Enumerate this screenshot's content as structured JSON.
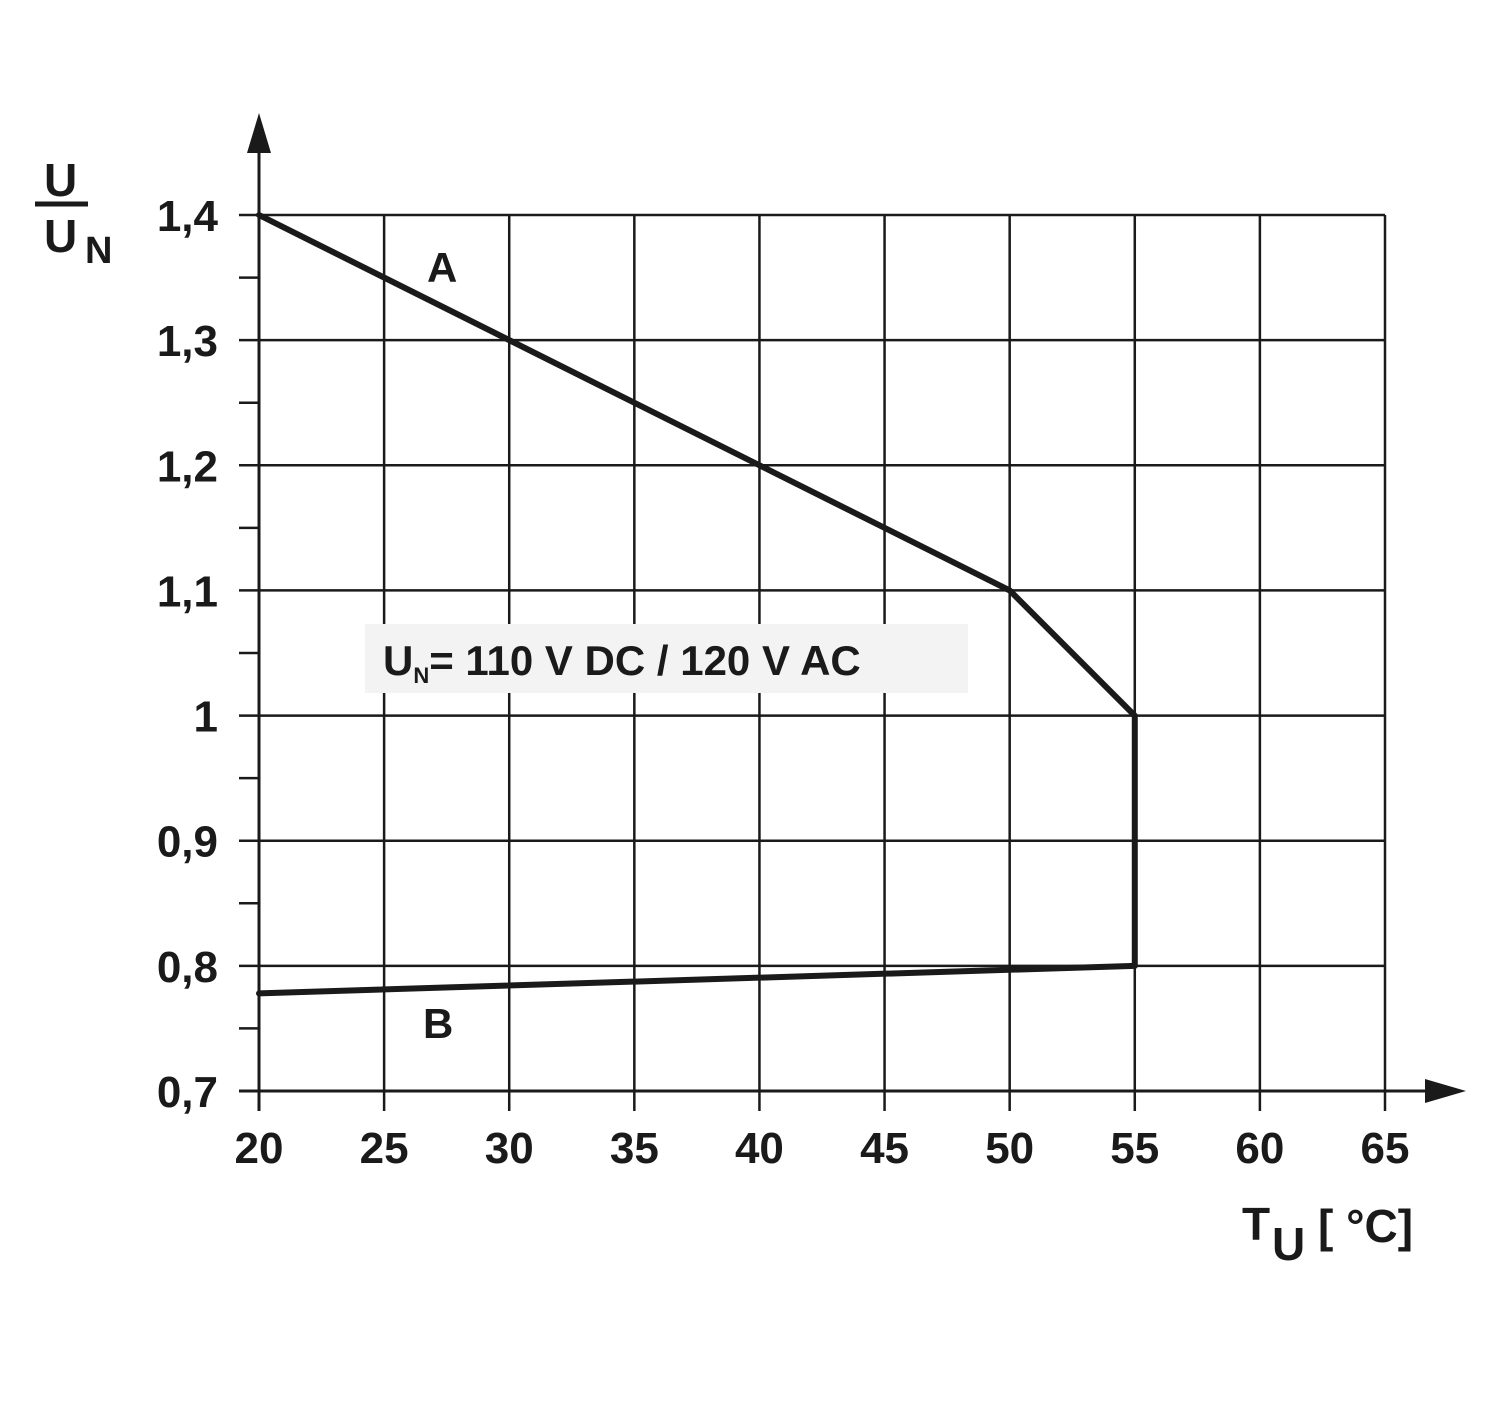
{
  "chart_data": {
    "type": "line",
    "title": "",
    "xlabel": "T",
    "xlabel_sub": "U",
    "xlabel_unit": "[ °C]",
    "ylabel_num": "U",
    "ylabel_den": "U",
    "ylabel_den_sub": "N",
    "xlim": [
      20,
      65
    ],
    "ylim": [
      0.7,
      1.4
    ],
    "x_ticks": [
      20,
      25,
      30,
      35,
      40,
      45,
      50,
      55,
      60,
      65
    ],
    "x_tick_labels": [
      "20",
      "25",
      "30",
      "35",
      "40",
      "45",
      "50",
      "55",
      "60",
      "65"
    ],
    "y_ticks": [
      0.7,
      0.8,
      0.9,
      1.0,
      1.1,
      1.2,
      1.3,
      1.4
    ],
    "y_tick_labels": [
      "0,7",
      "0,8",
      "0,9",
      "1",
      "1,1",
      "1,2",
      "1,3",
      "1,4"
    ],
    "y_minor_ticks": [
      0.75,
      0.85,
      0.95,
      1.05,
      1.15,
      1.25,
      1.35
    ],
    "grid": true,
    "line_color": "#1a1a1a",
    "series": [
      {
        "name": "A",
        "x": [
          20,
          50,
          55,
          55
        ],
        "y": [
          1.4,
          1.1,
          1.0,
          0.8
        ]
      },
      {
        "name": "B",
        "x": [
          20,
          55
        ],
        "y": [
          0.778,
          0.8
        ]
      }
    ],
    "series_labels": [
      {
        "text": "A",
        "x": 27.4,
        "y": 1.36
      },
      {
        "text": "B",
        "x": 27.2,
        "y": 0.755
      }
    ],
    "annotation": {
      "prefix": "U",
      "prefix_sub": "N",
      "text": "= 110 V DC / 120 V AC",
      "x": 24.9,
      "y": 1.05
    }
  }
}
